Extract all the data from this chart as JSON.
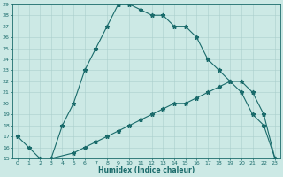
{
  "xlabel": "Humidex (Indice chaleur)",
  "xlim": [
    -0.5,
    23.5
  ],
  "ylim": [
    15,
    29
  ],
  "yticks": [
    15,
    16,
    17,
    18,
    19,
    20,
    21,
    22,
    23,
    24,
    25,
    26,
    27,
    28,
    29
  ],
  "xticks": [
    0,
    1,
    2,
    3,
    4,
    5,
    6,
    7,
    8,
    9,
    10,
    11,
    12,
    13,
    14,
    15,
    16,
    17,
    18,
    19,
    20,
    21,
    22,
    23
  ],
  "bg_color": "#cce9e5",
  "line_color": "#1a6b6b",
  "grid_color": "#aacfcc",
  "line1_x": [
    0,
    1,
    2,
    3,
    4,
    5,
    6,
    7,
    8,
    9,
    10,
    11,
    12,
    13,
    14,
    15,
    16,
    17,
    18,
    19,
    20,
    21,
    22,
    23
  ],
  "line1_y": [
    17,
    16,
    15,
    15,
    18,
    20,
    23,
    25,
    27,
    29,
    29,
    28.5,
    28,
    28,
    27,
    27,
    26,
    24,
    23,
    22,
    21,
    19,
    18,
    15
  ],
  "line2_x": [
    3,
    5,
    6,
    7,
    8,
    9,
    10,
    11,
    12,
    13,
    14,
    15,
    16,
    17,
    18,
    19,
    20,
    21,
    22,
    23
  ],
  "line2_y": [
    15,
    15.5,
    16,
    16.5,
    17,
    17.5,
    18,
    18.5,
    19,
    19.5,
    20,
    20,
    20.5,
    21,
    21.5,
    22,
    22,
    21,
    19,
    15
  ],
  "line3_x": [
    3,
    16,
    17,
    22,
    23
  ],
  "line3_y": [
    15,
    15,
    15,
    15,
    15
  ]
}
